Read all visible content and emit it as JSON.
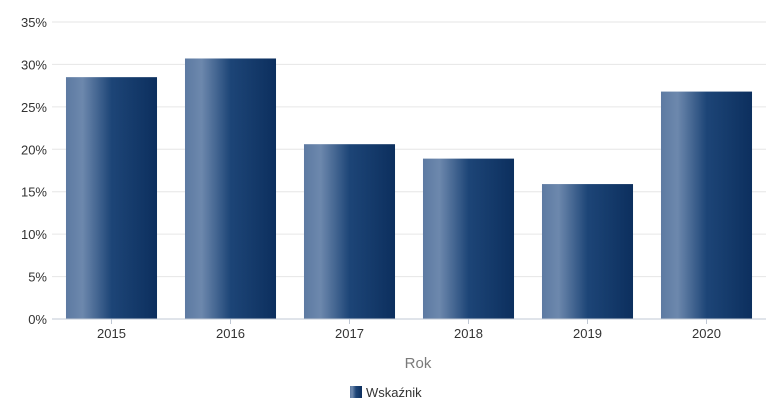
{
  "chart_data": {
    "type": "bar",
    "title": "",
    "xlabel": "Rok",
    "ylabel": "",
    "categories": [
      "2015",
      "2016",
      "2017",
      "2018",
      "2019",
      "2020"
    ],
    "series": [
      {
        "name": "Wskaźnik",
        "values": [
          28.5,
          30.7,
          20.6,
          18.9,
          15.9,
          26.8
        ],
        "color": "#13386b"
      }
    ],
    "ylim": [
      0,
      35
    ],
    "yticks": [
      "0%",
      "5%",
      "10%",
      "15%",
      "20%",
      "25%",
      "30%",
      "35%"
    ],
    "grid": true,
    "legend_position": "bottom-center"
  }
}
